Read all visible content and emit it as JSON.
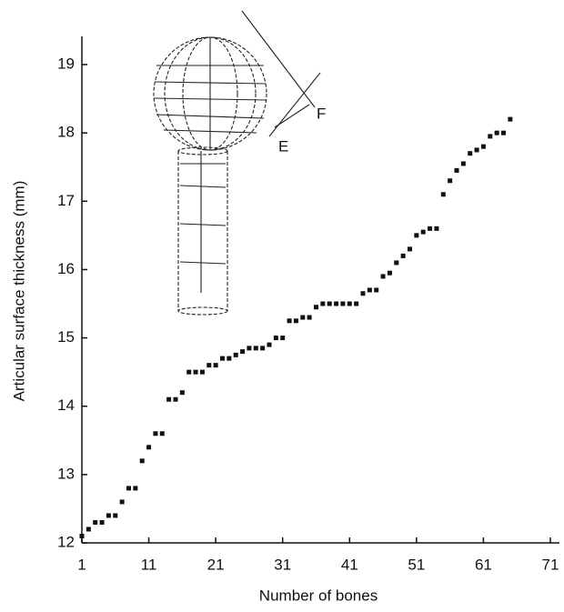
{
  "chart_data": {
    "type": "scatter",
    "x_label": "Number of bones",
    "y_label": "Articular surface thickness (mm)",
    "x": [
      1,
      2,
      3,
      4,
      5,
      6,
      7,
      8,
      9,
      10,
      11,
      12,
      13,
      14,
      15,
      16,
      17,
      18,
      19,
      20,
      21,
      22,
      23,
      24,
      25,
      26,
      27,
      28,
      29,
      30,
      31,
      32,
      33,
      34,
      35,
      36,
      37,
      38,
      39,
      40,
      41,
      42,
      43,
      44,
      45,
      46,
      47,
      48,
      49,
      50,
      51,
      52,
      53,
      54,
      55,
      56,
      57,
      58,
      59,
      60,
      61,
      62,
      63,
      64,
      65
    ],
    "values": [
      12.1,
      12.2,
      12.3,
      12.3,
      12.4,
      12.4,
      12.6,
      12.8,
      12.8,
      13.2,
      13.4,
      13.6,
      13.6,
      14.1,
      14.1,
      14.2,
      14.5,
      14.5,
      14.5,
      14.6,
      14.6,
      14.7,
      14.7,
      14.75,
      14.8,
      14.85,
      14.85,
      14.85,
      14.9,
      15.0,
      15.0,
      15.25,
      15.25,
      15.3,
      15.3,
      15.45,
      15.5,
      15.5,
      15.5,
      15.5,
      15.5,
      15.5,
      15.65,
      15.7,
      15.7,
      15.9,
      15.95,
      16.1,
      16.2,
      16.3,
      16.5,
      16.55,
      16.6,
      16.6,
      17.1,
      17.3,
      17.45,
      17.55,
      17.7,
      17.75,
      17.8,
      17.95,
      18.0,
      18.0,
      18.2
    ],
    "color": "#111111",
    "xlim": [
      1,
      71
    ],
    "xticks": [
      1,
      11,
      21,
      31,
      41,
      51,
      61,
      71
    ],
    "ylim": [
      12,
      19
    ],
    "yticks": [
      12,
      13,
      14,
      15,
      16,
      17,
      18,
      19
    ],
    "inset_labels": [
      "F",
      "E"
    ]
  }
}
